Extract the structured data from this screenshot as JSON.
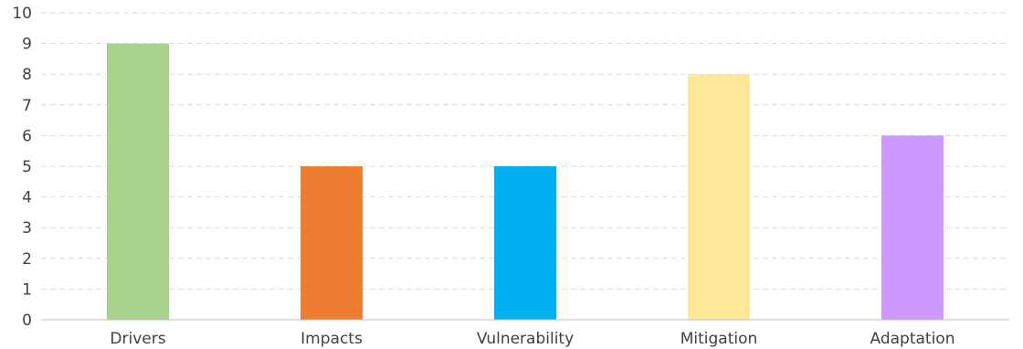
{
  "chart_data": {
    "type": "bar",
    "title": "",
    "categories": [
      "Drivers",
      "Impacts",
      "Vulnerability",
      "Mitigation",
      "Adaptation"
    ],
    "values": [
      9,
      5,
      5,
      8,
      6
    ],
    "colors": [
      "#a9d18e",
      "#ed7d31",
      "#00b0f0",
      "#ffe699",
      "#cc99ff"
    ],
    "xlabel": "",
    "ylabel": "",
    "ylim": [
      0,
      10
    ],
    "yticks": [
      "0",
      "1",
      "2",
      "3",
      "4",
      "5",
      "6",
      "7",
      "8",
      "9",
      "10"
    ],
    "grid": "horizontal dashed",
    "legend": "none"
  },
  "style": {
    "gridline_color": "#d9d9d9",
    "axis_color": "#bfbfbf",
    "text_color": "#404040"
  }
}
